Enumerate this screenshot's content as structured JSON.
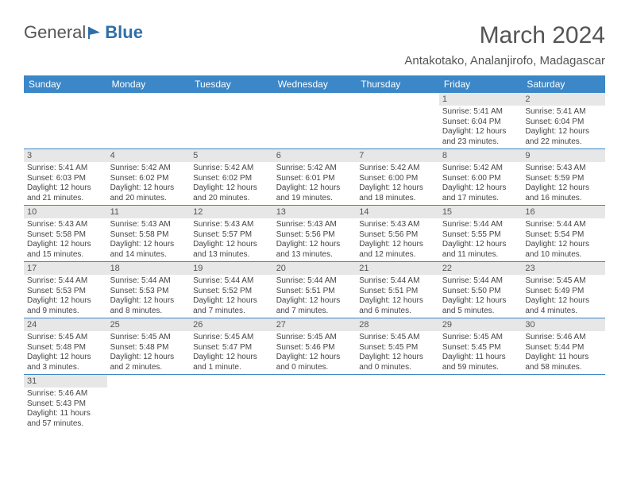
{
  "brand": {
    "part1": "General",
    "part2": "Blue",
    "logo_color": "#2f6fa8",
    "text_color": "#555"
  },
  "title": "March 2024",
  "location": "Antakotako, Analanjirofo, Madagascar",
  "header_bg": "#3b87c8",
  "header_fg": "#ffffff",
  "daynum_bg": "#e7e7e7",
  "row_border": "#3b87c8",
  "weekdays": [
    "Sunday",
    "Monday",
    "Tuesday",
    "Wednesday",
    "Thursday",
    "Friday",
    "Saturday"
  ],
  "weeks": [
    [
      null,
      null,
      null,
      null,
      null,
      {
        "d": "1",
        "sr": "Sunrise: 5:41 AM",
        "ss": "Sunset: 6:04 PM",
        "dl1": "Daylight: 12 hours",
        "dl2": "and 23 minutes."
      },
      {
        "d": "2",
        "sr": "Sunrise: 5:41 AM",
        "ss": "Sunset: 6:04 PM",
        "dl1": "Daylight: 12 hours",
        "dl2": "and 22 minutes."
      }
    ],
    [
      {
        "d": "3",
        "sr": "Sunrise: 5:41 AM",
        "ss": "Sunset: 6:03 PM",
        "dl1": "Daylight: 12 hours",
        "dl2": "and 21 minutes."
      },
      {
        "d": "4",
        "sr": "Sunrise: 5:42 AM",
        "ss": "Sunset: 6:02 PM",
        "dl1": "Daylight: 12 hours",
        "dl2": "and 20 minutes."
      },
      {
        "d": "5",
        "sr": "Sunrise: 5:42 AM",
        "ss": "Sunset: 6:02 PM",
        "dl1": "Daylight: 12 hours",
        "dl2": "and 20 minutes."
      },
      {
        "d": "6",
        "sr": "Sunrise: 5:42 AM",
        "ss": "Sunset: 6:01 PM",
        "dl1": "Daylight: 12 hours",
        "dl2": "and 19 minutes."
      },
      {
        "d": "7",
        "sr": "Sunrise: 5:42 AM",
        "ss": "Sunset: 6:00 PM",
        "dl1": "Daylight: 12 hours",
        "dl2": "and 18 minutes."
      },
      {
        "d": "8",
        "sr": "Sunrise: 5:42 AM",
        "ss": "Sunset: 6:00 PM",
        "dl1": "Daylight: 12 hours",
        "dl2": "and 17 minutes."
      },
      {
        "d": "9",
        "sr": "Sunrise: 5:43 AM",
        "ss": "Sunset: 5:59 PM",
        "dl1": "Daylight: 12 hours",
        "dl2": "and 16 minutes."
      }
    ],
    [
      {
        "d": "10",
        "sr": "Sunrise: 5:43 AM",
        "ss": "Sunset: 5:58 PM",
        "dl1": "Daylight: 12 hours",
        "dl2": "and 15 minutes."
      },
      {
        "d": "11",
        "sr": "Sunrise: 5:43 AM",
        "ss": "Sunset: 5:58 PM",
        "dl1": "Daylight: 12 hours",
        "dl2": "and 14 minutes."
      },
      {
        "d": "12",
        "sr": "Sunrise: 5:43 AM",
        "ss": "Sunset: 5:57 PM",
        "dl1": "Daylight: 12 hours",
        "dl2": "and 13 minutes."
      },
      {
        "d": "13",
        "sr": "Sunrise: 5:43 AM",
        "ss": "Sunset: 5:56 PM",
        "dl1": "Daylight: 12 hours",
        "dl2": "and 13 minutes."
      },
      {
        "d": "14",
        "sr": "Sunrise: 5:43 AM",
        "ss": "Sunset: 5:56 PM",
        "dl1": "Daylight: 12 hours",
        "dl2": "and 12 minutes."
      },
      {
        "d": "15",
        "sr": "Sunrise: 5:44 AM",
        "ss": "Sunset: 5:55 PM",
        "dl1": "Daylight: 12 hours",
        "dl2": "and 11 minutes."
      },
      {
        "d": "16",
        "sr": "Sunrise: 5:44 AM",
        "ss": "Sunset: 5:54 PM",
        "dl1": "Daylight: 12 hours",
        "dl2": "and 10 minutes."
      }
    ],
    [
      {
        "d": "17",
        "sr": "Sunrise: 5:44 AM",
        "ss": "Sunset: 5:53 PM",
        "dl1": "Daylight: 12 hours",
        "dl2": "and 9 minutes."
      },
      {
        "d": "18",
        "sr": "Sunrise: 5:44 AM",
        "ss": "Sunset: 5:53 PM",
        "dl1": "Daylight: 12 hours",
        "dl2": "and 8 minutes."
      },
      {
        "d": "19",
        "sr": "Sunrise: 5:44 AM",
        "ss": "Sunset: 5:52 PM",
        "dl1": "Daylight: 12 hours",
        "dl2": "and 7 minutes."
      },
      {
        "d": "20",
        "sr": "Sunrise: 5:44 AM",
        "ss": "Sunset: 5:51 PM",
        "dl1": "Daylight: 12 hours",
        "dl2": "and 7 minutes."
      },
      {
        "d": "21",
        "sr": "Sunrise: 5:44 AM",
        "ss": "Sunset: 5:51 PM",
        "dl1": "Daylight: 12 hours",
        "dl2": "and 6 minutes."
      },
      {
        "d": "22",
        "sr": "Sunrise: 5:44 AM",
        "ss": "Sunset: 5:50 PM",
        "dl1": "Daylight: 12 hours",
        "dl2": "and 5 minutes."
      },
      {
        "d": "23",
        "sr": "Sunrise: 5:45 AM",
        "ss": "Sunset: 5:49 PM",
        "dl1": "Daylight: 12 hours",
        "dl2": "and 4 minutes."
      }
    ],
    [
      {
        "d": "24",
        "sr": "Sunrise: 5:45 AM",
        "ss": "Sunset: 5:48 PM",
        "dl1": "Daylight: 12 hours",
        "dl2": "and 3 minutes."
      },
      {
        "d": "25",
        "sr": "Sunrise: 5:45 AM",
        "ss": "Sunset: 5:48 PM",
        "dl1": "Daylight: 12 hours",
        "dl2": "and 2 minutes."
      },
      {
        "d": "26",
        "sr": "Sunrise: 5:45 AM",
        "ss": "Sunset: 5:47 PM",
        "dl1": "Daylight: 12 hours",
        "dl2": "and 1 minute."
      },
      {
        "d": "27",
        "sr": "Sunrise: 5:45 AM",
        "ss": "Sunset: 5:46 PM",
        "dl1": "Daylight: 12 hours",
        "dl2": "and 0 minutes."
      },
      {
        "d": "28",
        "sr": "Sunrise: 5:45 AM",
        "ss": "Sunset: 5:45 PM",
        "dl1": "Daylight: 12 hours",
        "dl2": "and 0 minutes."
      },
      {
        "d": "29",
        "sr": "Sunrise: 5:45 AM",
        "ss": "Sunset: 5:45 PM",
        "dl1": "Daylight: 11 hours",
        "dl2": "and 59 minutes."
      },
      {
        "d": "30",
        "sr": "Sunrise: 5:46 AM",
        "ss": "Sunset: 5:44 PM",
        "dl1": "Daylight: 11 hours",
        "dl2": "and 58 minutes."
      }
    ],
    [
      {
        "d": "31",
        "sr": "Sunrise: 5:46 AM",
        "ss": "Sunset: 5:43 PM",
        "dl1": "Daylight: 11 hours",
        "dl2": "and 57 minutes."
      },
      null,
      null,
      null,
      null,
      null,
      null
    ]
  ]
}
